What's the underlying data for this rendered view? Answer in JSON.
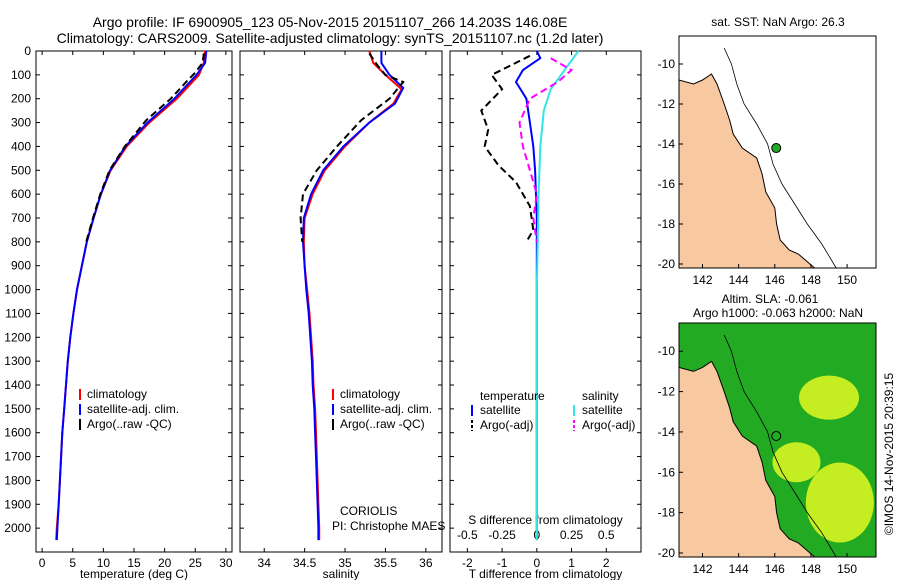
{
  "header": {
    "line1": "Argo profile: IF 6900905_123 05-Nov-2015 20151107_266 14.203S 146.08E",
    "line2": "Climatology: CARS2009. Satellite-adjusted climatology: synTS_20151107.nc (1.2d later)"
  },
  "colors": {
    "climatology": "#ff0000",
    "satellite": "#0000ff",
    "argo": "#000000",
    "salinity_satellite": "#33e6e6",
    "salinity_argo": "#ff00ff",
    "land": "#f8c8a0",
    "ocean_sst": "#ffffff",
    "sla_low": "#22aa22",
    "sla_high": "#eeff22",
    "argo_marker": "#22aa22"
  },
  "chart_data": [
    {
      "type": "line",
      "name": "temperature-profile",
      "xlabel": "temperature (deg C)",
      "ylabel": "",
      "xlim": [
        -1,
        31
      ],
      "ylim": [
        2100,
        0
      ],
      "x_ticks": [
        0,
        5,
        10,
        15,
        20,
        25,
        30
      ],
      "y_ticks": [
        0,
        100,
        200,
        300,
        400,
        500,
        600,
        700,
        800,
        900,
        1000,
        1100,
        1200,
        1300,
        1400,
        1500,
        1600,
        1700,
        1800,
        1900,
        2000
      ],
      "legend": {
        "position": "middle-center",
        "entries": [
          "climatology",
          "satellite-adj. clim.",
          "Argo(..raw -QC)"
        ]
      },
      "series": [
        {
          "name": "climatology",
          "style": "solid",
          "color_key": "climatology",
          "points": [
            [
              26.6,
              0
            ],
            [
              26.4,
              50
            ],
            [
              25.6,
              100
            ],
            [
              22,
              200
            ],
            [
              17.5,
              300
            ],
            [
              13.8,
              400
            ],
            [
              11.2,
              500
            ],
            [
              9.6,
              600
            ],
            [
              8.4,
              700
            ],
            [
              7.3,
              800
            ],
            [
              6.5,
              900
            ],
            [
              5.7,
              1000
            ],
            [
              5.1,
              1100
            ],
            [
              4.6,
              1200
            ],
            [
              4.2,
              1300
            ],
            [
              3.9,
              1400
            ],
            [
              3.6,
              1500
            ],
            [
              3.3,
              1600
            ],
            [
              3.1,
              1700
            ],
            [
              2.9,
              1800
            ],
            [
              2.7,
              1900
            ],
            [
              2.4,
              2000
            ],
            [
              2.3,
              2050
            ]
          ]
        },
        {
          "name": "satellite-adj. clim.",
          "style": "solid",
          "color_key": "satellite",
          "points": [
            [
              26.8,
              0
            ],
            [
              26.6,
              50
            ],
            [
              25.2,
              100
            ],
            [
              21.6,
              200
            ],
            [
              17.2,
              300
            ],
            [
              13.6,
              400
            ],
            [
              11.1,
              500
            ],
            [
              9.6,
              600
            ],
            [
              8.4,
              700
            ],
            [
              7.3,
              800
            ],
            [
              6.5,
              900
            ],
            [
              5.7,
              1000
            ],
            [
              5.1,
              1100
            ],
            [
              4.6,
              1200
            ],
            [
              4.2,
              1300
            ],
            [
              3.9,
              1400
            ],
            [
              3.6,
              1500
            ],
            [
              3.3,
              1600
            ],
            [
              3.1,
              1700
            ],
            [
              2.9,
              1800
            ],
            [
              2.7,
              1900
            ],
            [
              2.5,
              2000
            ],
            [
              2.4,
              2050
            ]
          ]
        },
        {
          "name": "Argo(..raw -QC)",
          "style": "dashed",
          "color_key": "argo",
          "points": [
            [
              26.4,
              10
            ],
            [
              26.2,
              50
            ],
            [
              25,
              90
            ],
            [
              23.5,
              130
            ],
            [
              21,
              200
            ],
            [
              17,
              290
            ],
            [
              13.5,
              400
            ],
            [
              11,
              500
            ],
            [
              9.5,
              600
            ],
            [
              8.3,
              700
            ],
            [
              7.2,
              800
            ]
          ]
        }
      ]
    },
    {
      "type": "line",
      "name": "salinity-profile",
      "xlabel": "salinity",
      "ylabel": "",
      "xlim": [
        33.7,
        36.2
      ],
      "ylim": [
        2100,
        0
      ],
      "x_ticks": [
        34,
        34.5,
        35,
        35.5,
        36
      ],
      "x_tick_labels": [
        "34",
        "34.5",
        "35",
        "35.5",
        "36"
      ],
      "legend": {
        "position": "middle-right",
        "entries": [
          "climatology",
          "satellite-adj. clim.",
          "Argo(..raw -QC)"
        ]
      },
      "annotations": [
        "CORIOLIS",
        "PI: Christophe MAES"
      ],
      "series": [
        {
          "name": "climatology",
          "style": "solid",
          "color_key": "climatology",
          "points": [
            [
              35.3,
              0
            ],
            [
              35.35,
              50
            ],
            [
              35.5,
              100
            ],
            [
              35.7,
              160
            ],
            [
              35.6,
              220
            ],
            [
              35.3,
              300
            ],
            [
              35.0,
              400
            ],
            [
              34.75,
              500
            ],
            [
              34.6,
              600
            ],
            [
              34.5,
              700
            ],
            [
              34.49,
              800
            ],
            [
              34.5,
              900
            ],
            [
              34.53,
              1000
            ],
            [
              34.56,
              1100
            ],
            [
              34.58,
              1200
            ],
            [
              34.6,
              1300
            ],
            [
              34.61,
              1400
            ],
            [
              34.63,
              1500
            ],
            [
              34.64,
              1600
            ],
            [
              34.65,
              1700
            ],
            [
              34.66,
              1800
            ],
            [
              34.67,
              1900
            ],
            [
              34.68,
              2000
            ],
            [
              34.68,
              2050
            ]
          ]
        },
        {
          "name": "satellite-adj. clim.",
          "style": "solid",
          "color_key": "satellite",
          "points": [
            [
              35.45,
              0
            ],
            [
              35.45,
              50
            ],
            [
              35.55,
              100
            ],
            [
              35.72,
              155
            ],
            [
              35.62,
              220
            ],
            [
              35.3,
              300
            ],
            [
              34.98,
              400
            ],
            [
              34.73,
              500
            ],
            [
              34.58,
              600
            ],
            [
              34.49,
              700
            ],
            [
              34.48,
              800
            ],
            [
              34.5,
              900
            ],
            [
              34.52,
              1000
            ],
            [
              34.55,
              1100
            ],
            [
              34.57,
              1200
            ],
            [
              34.59,
              1300
            ],
            [
              34.6,
              1400
            ],
            [
              34.62,
              1500
            ],
            [
              34.63,
              1600
            ],
            [
              34.64,
              1700
            ],
            [
              34.65,
              1800
            ],
            [
              34.66,
              1900
            ],
            [
              34.67,
              2000
            ],
            [
              34.67,
              2050
            ]
          ]
        },
        {
          "name": "Argo(..raw -QC)",
          "style": "dashed",
          "color_key": "argo",
          "points": [
            [
              35.3,
              10
            ],
            [
              35.4,
              60
            ],
            [
              35.5,
              100
            ],
            [
              35.72,
              130
            ],
            [
              35.55,
              200
            ],
            [
              35.2,
              290
            ],
            [
              34.9,
              400
            ],
            [
              34.65,
              500
            ],
            [
              34.48,
              600
            ],
            [
              34.45,
              700
            ],
            [
              34.47,
              800
            ]
          ]
        }
      ]
    },
    {
      "type": "line",
      "name": "difference-profile",
      "xlabel": "T difference from climatology",
      "x2label": "S difference from climatology",
      "xlim": [
        -2.5,
        3
      ],
      "ylim": [
        2100,
        0
      ],
      "x_ticks": [
        -2,
        -1,
        0,
        1,
        2
      ],
      "x2_ticks": [
        -0.5,
        -0.25,
        0,
        0.25,
        0.5
      ],
      "x2_tick_labels": [
        "-0.5",
        "-0.25",
        "0",
        "0.25",
        "0.5"
      ],
      "legend": {
        "position": "middle",
        "headers": [
          "temperature",
          "salinity"
        ],
        "entries": [
          "satellite",
          "Argo(-adj)",
          "satellite",
          "Argo(-adj)"
        ]
      },
      "series": [
        {
          "name": "temperature satellite",
          "style": "solid",
          "color_key": "satellite",
          "points": [
            [
              0,
              0
            ],
            [
              0.1,
              30
            ],
            [
              -0.4,
              80
            ],
            [
              -0.6,
              130
            ],
            [
              -0.3,
              200
            ],
            [
              -0.2,
              300
            ],
            [
              -0.1,
              400
            ],
            [
              -0.05,
              500
            ],
            [
              0,
              700
            ],
            [
              0,
              1000
            ],
            [
              0,
              1500
            ],
            [
              0,
              2050
            ]
          ]
        },
        {
          "name": "temperature Argo(-adj)",
          "style": "dashed",
          "color_key": "argo",
          "points": [
            [
              -0.2,
              20
            ],
            [
              -1.3,
              100
            ],
            [
              -1.0,
              160
            ],
            [
              -1.6,
              250
            ],
            [
              -1.4,
              330
            ],
            [
              -1.5,
              400
            ],
            [
              -1.1,
              480
            ],
            [
              -0.6,
              550
            ],
            [
              -0.2,
              650
            ],
            [
              -0.1,
              750
            ],
            [
              -0.3,
              800
            ]
          ]
        },
        {
          "name": "salinity satellite",
          "style": "solid",
          "color_key": "salinity_satellite",
          "points": [
            [
              1.2,
              0
            ],
            [
              1.0,
              40
            ],
            [
              0.7,
              100
            ],
            [
              0.4,
              160
            ],
            [
              0.2,
              250
            ],
            [
              0.1,
              400
            ],
            [
              0.05,
              600
            ],
            [
              0,
              1000
            ],
            [
              0,
              1500
            ],
            [
              0,
              2050
            ]
          ]
        },
        {
          "name": "salinity Argo(-adj)",
          "style": "dashed",
          "color_key": "salinity_argo",
          "points": [
            [
              0.4,
              30
            ],
            [
              1.0,
              80
            ],
            [
              0.6,
              130
            ],
            [
              -0.2,
              200
            ],
            [
              -0.5,
              300
            ],
            [
              -0.4,
              400
            ],
            [
              -0.2,
              500
            ],
            [
              0,
              600
            ],
            [
              -0.1,
              700
            ],
            [
              0,
              800
            ]
          ]
        }
      ]
    }
  ],
  "maps": {
    "sst": {
      "title": "sat. SST: NaN Argo: 26.3",
      "lon_ticks": [
        "142",
        "144",
        "146",
        "148",
        "150"
      ],
      "lat_ticks": [
        "-10",
        "-12",
        "-14",
        "-16",
        "-18",
        "-20"
      ]
    },
    "sla": {
      "title_line1": "Altim. SLA: -0.061",
      "title_line2": "Argo h1000: -0.063 h2000: NaN",
      "lon_ticks": [
        "142",
        "144",
        "146",
        "148",
        "150"
      ],
      "lat_ticks": [
        "-10",
        "-12",
        "-14",
        "-16",
        "-18",
        "-20"
      ]
    },
    "argo_position": {
      "lon": 146.08,
      "lat": -14.203
    }
  },
  "footer": {
    "side_label": "©IMOS 14-Nov-2015 20:39:15"
  }
}
